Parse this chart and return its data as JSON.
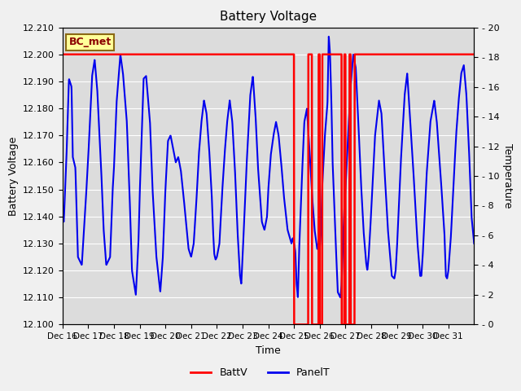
{
  "title": "Battery Voltage",
  "xlabel": "Time",
  "ylabel_left": "Battery Voltage",
  "ylabel_right": "Temperature",
  "ylim_left": [
    12.1,
    12.215
  ],
  "ylim_right": [
    0,
    20.9090909
  ],
  "xlim": [
    0,
    16
  ],
  "x_tick_labels": [
    "Dec 16",
    "Dec 17",
    "Dec 18",
    "Dec 19",
    "Dec 20",
    "Dec 21",
    "Dec 22",
    "Dec 23",
    "Dec 24",
    "Dec 25",
    "Dec 26",
    "Dec 27",
    "Dec 28",
    "Dec 29",
    "Dec 30",
    "Dec 31"
  ],
  "annotation_text": "BC_met",
  "annotation_color": "#8B0000",
  "annotation_bg": "#FFFF99",
  "bg_color": "#F0F0F0",
  "plot_bg_color": "#DCDCDC",
  "batt_v_color": "#FF0000",
  "panel_t_color": "#0000EE",
  "batt_v_value": 12.2,
  "legend_labels": [
    "BattV",
    "PanelT"
  ],
  "grid_color": "#FFFFFF",
  "yticks_left": [
    12.1,
    12.11,
    12.12,
    12.13,
    12.14,
    12.15,
    12.16,
    12.17,
    12.18,
    12.19,
    12.2,
    12.21
  ],
  "yticks_right": [
    0,
    2,
    4,
    6,
    8,
    10,
    12,
    14,
    16,
    18,
    20
  ]
}
